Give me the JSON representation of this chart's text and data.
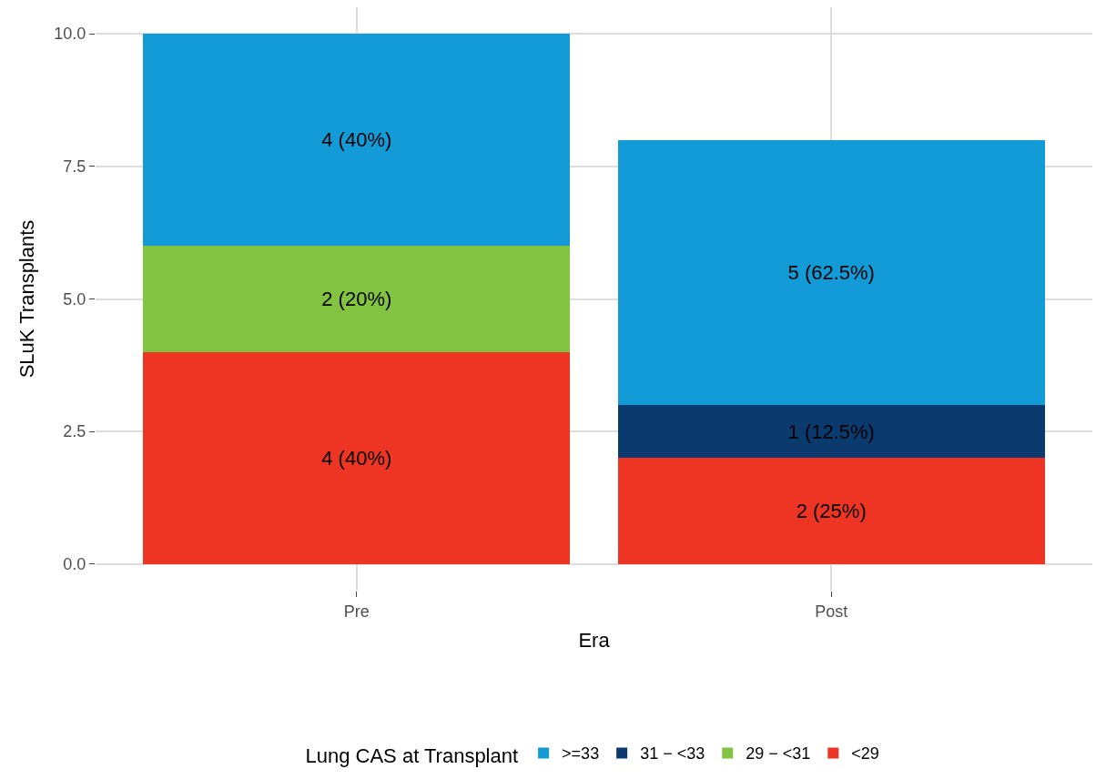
{
  "chart_data": {
    "type": "bar",
    "stacked": true,
    "xlabel": "Era",
    "ylabel": "SLuK Transplants",
    "legend_title": "Lung CAS at Transplant",
    "categories": [
      "Pre",
      "Post"
    ],
    "series": [
      {
        "name": "<29",
        "color": "#ee3524",
        "values": [
          4,
          2
        ],
        "value_labels": [
          "4 (40%)",
          "2 (25%)"
        ]
      },
      {
        "name": "29 − <31",
        "color": "#82c341",
        "values": [
          2,
          null
        ],
        "value_labels": [
          "2 (20%)",
          null
        ]
      },
      {
        "name": "31 − <33",
        "color": "#0b3b6e",
        "values": [
          null,
          1
        ],
        "value_labels": [
          null,
          "1 (12.5%)"
        ]
      },
      {
        "name": ">=33",
        "color": "#129bd7",
        "values": [
          4,
          5
        ],
        "value_labels": [
          "4 (40%)",
          "5 (62.5%)"
        ]
      }
    ],
    "ylim": [
      -0.5,
      10.5
    ],
    "yticks": [
      {
        "value": 0,
        "label": "0.0"
      },
      {
        "value": 2.5,
        "label": "2.5"
      },
      {
        "value": 5,
        "label": "5.0"
      },
      {
        "value": 7.5,
        "label": "7.5"
      },
      {
        "value": 10,
        "label": "10.0"
      }
    ],
    "grid": true,
    "legend": "bottom"
  }
}
